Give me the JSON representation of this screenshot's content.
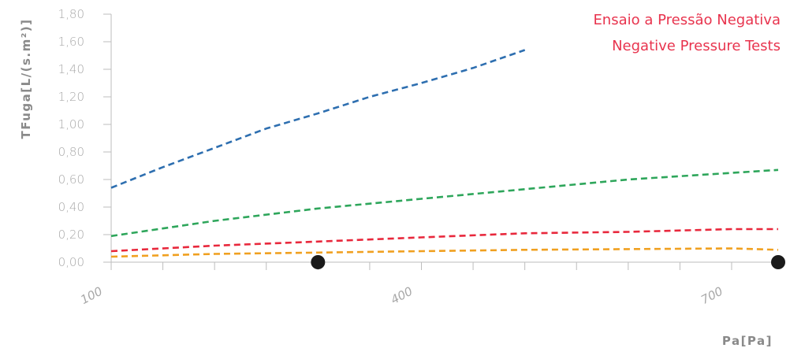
{
  "chart_data": {
    "type": "line",
    "title_lines": [
      "Ensaio a Pressão Negativa",
      "Negative Pressure Tests"
    ],
    "xlabel": "Pa[Pa]",
    "ylabel": "TFuga[L/(s.m²)]",
    "xlim": [
      100,
      745
    ],
    "ylim": [
      0,
      1.8
    ],
    "x_tick_values": [
      100,
      150,
      200,
      250,
      300,
      350,
      400,
      450,
      500,
      550,
      600,
      650,
      700
    ],
    "x_tick_labels": [
      {
        "value": 100,
        "label": "100"
      },
      {
        "value": 400,
        "label": "400"
      },
      {
        "value": 700,
        "label": "700"
      }
    ],
    "y_tick_labels": [
      "0,00",
      "0,20",
      "0,40",
      "0,60",
      "0,80",
      "1,00",
      "1,20",
      "1,40",
      "1,60",
      "1,80"
    ],
    "y_tick_values": [
      0,
      0.2,
      0.4,
      0.6,
      0.8,
      1.0,
      1.2,
      1.4,
      1.6,
      1.8
    ],
    "grid": false,
    "series": [
      {
        "color": "#2e6fb0",
        "style": "dashed",
        "x": [
          100,
          150,
          200,
          250,
          300,
          350,
          400,
          450,
          500
        ],
        "y": [
          0.54,
          0.69,
          0.83,
          0.97,
          1.08,
          1.2,
          1.3,
          1.41,
          1.54
        ]
      },
      {
        "color": "#2ea65b",
        "style": "dashed",
        "x": [
          100,
          200,
          300,
          400,
          500,
          600,
          745
        ],
        "y": [
          0.19,
          0.3,
          0.39,
          0.46,
          0.53,
          0.6,
          0.67
        ]
      },
      {
        "color": "#e8283c",
        "style": "dashed",
        "x": [
          100,
          200,
          300,
          400,
          500,
          600,
          700,
          745
        ],
        "y": [
          0.08,
          0.12,
          0.15,
          0.18,
          0.21,
          0.22,
          0.24,
          0.24
        ]
      },
      {
        "color": "#f0a020",
        "style": "dashed",
        "x": [
          100,
          200,
          300,
          400,
          500,
          600,
          700,
          745
        ],
        "y": [
          0.04,
          0.06,
          0.07,
          0.08,
          0.09,
          0.095,
          0.1,
          0.09
        ]
      }
    ],
    "markers": [
      {
        "x": 300,
        "y": 0
      },
      {
        "x": 745,
        "y": 0
      }
    ]
  }
}
